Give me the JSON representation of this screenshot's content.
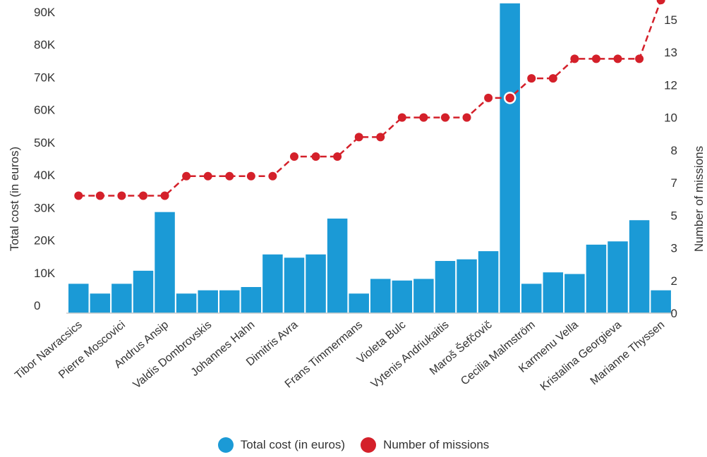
{
  "chart_data": {
    "type": "bar",
    "categories": [
      "Tibor Navracsics",
      "",
      "Pierre Moscovici",
      "",
      "Andrus Ansip",
      "",
      "Valdis Dombrovskis",
      "",
      "Johannes Hahn",
      "",
      "Dimitris Avra",
      "",
      "",
      "Frans Timmermans",
      "",
      "Violeta Bulc",
      "",
      "Vytenis Andriukaitis",
      "",
      "Maroš Šefčovič",
      "",
      "Cecilia Malmström",
      "",
      "Karmenu Vella",
      "",
      "Kristalina Georgieva",
      "",
      "Marianne Thyssen"
    ],
    "series": [
      {
        "name": "Total cost (in euros)",
        "axis": "left",
        "type": "bar",
        "color": "#1b9ad6",
        "values": [
          9000,
          6000,
          9000,
          13000,
          31000,
          6000,
          7000,
          7000,
          8000,
          18000,
          17000,
          18000,
          29000,
          6000,
          10500,
          10000,
          10500,
          16000,
          16500,
          19000,
          95000,
          9000,
          12500,
          12000,
          21000,
          22000,
          28500,
          7000
        ]
      },
      {
        "name": "Number of missions",
        "axis": "right",
        "type": "line",
        "color": "#d4202a",
        "values": [
          6,
          6,
          6,
          6,
          6,
          7,
          7,
          7,
          7,
          7,
          8,
          8,
          8,
          9,
          9,
          10,
          10,
          10,
          10,
          11,
          11,
          12,
          12,
          13,
          13,
          13,
          13,
          16
        ]
      }
    ],
    "y_left": {
      "label": "Total cost (in euros)",
      "min": 0,
      "max": 93000,
      "ticks": [
        0,
        10000,
        20000,
        30000,
        40000,
        50000,
        60000,
        70000,
        80000,
        90000
      ],
      "tick_labels": [
        "0",
        "10K",
        "20K",
        "30K",
        "40K",
        "50K",
        "60K",
        "70K",
        "80K",
        "90K"
      ]
    },
    "y_right": {
      "label": "Number of missions",
      "min": 0,
      "max": 15.5,
      "ticks": [
        0,
        1.667,
        3.333,
        5,
        6.667,
        8.333,
        10,
        11.667,
        13.333,
        15
      ],
      "tick_labels": [
        "0",
        "2",
        "3",
        "5",
        "7",
        "8",
        "10",
        "12",
        "13",
        "15"
      ]
    },
    "highlight_index": 20,
    "legend": {
      "position": "bottom",
      "items": [
        {
          "label": "Total cost (in euros)",
          "color": "#1b9ad6"
        },
        {
          "label": "Number of missions",
          "color": "#d4202a"
        }
      ]
    },
    "grid": false
  }
}
